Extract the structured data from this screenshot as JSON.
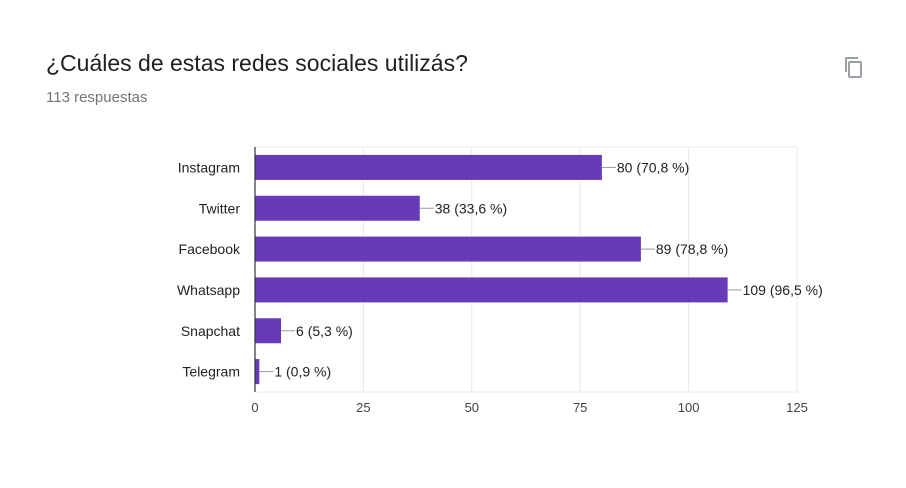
{
  "header": {
    "title": "¿Cuáles de estas redes sociales utilizás?",
    "responses": "113 respuestas",
    "copy_icon": "copy-icon"
  },
  "colors": {
    "bar": "#673ab7",
    "grid": "#e8e8e8",
    "axis": "#333333",
    "label": "#222222"
  },
  "chart_data": {
    "type": "bar",
    "orientation": "horizontal",
    "categories": [
      "Instagram",
      "Twitter",
      "Facebook",
      "Whatsapp",
      "Snapchat",
      "Telegram"
    ],
    "values": [
      80,
      38,
      89,
      109,
      6,
      1
    ],
    "data_labels": [
      "80 (70,8 %)",
      "38 (33,6 %)",
      "89 (78,8 %)",
      "109 (96,5 %)",
      "6 (5,3 %)",
      "1 (0,9 %)"
    ],
    "xlim": [
      0,
      125
    ],
    "xticks": [
      0,
      25,
      50,
      75,
      100,
      125
    ],
    "grid": true,
    "title": "",
    "xlabel": "",
    "ylabel": ""
  }
}
